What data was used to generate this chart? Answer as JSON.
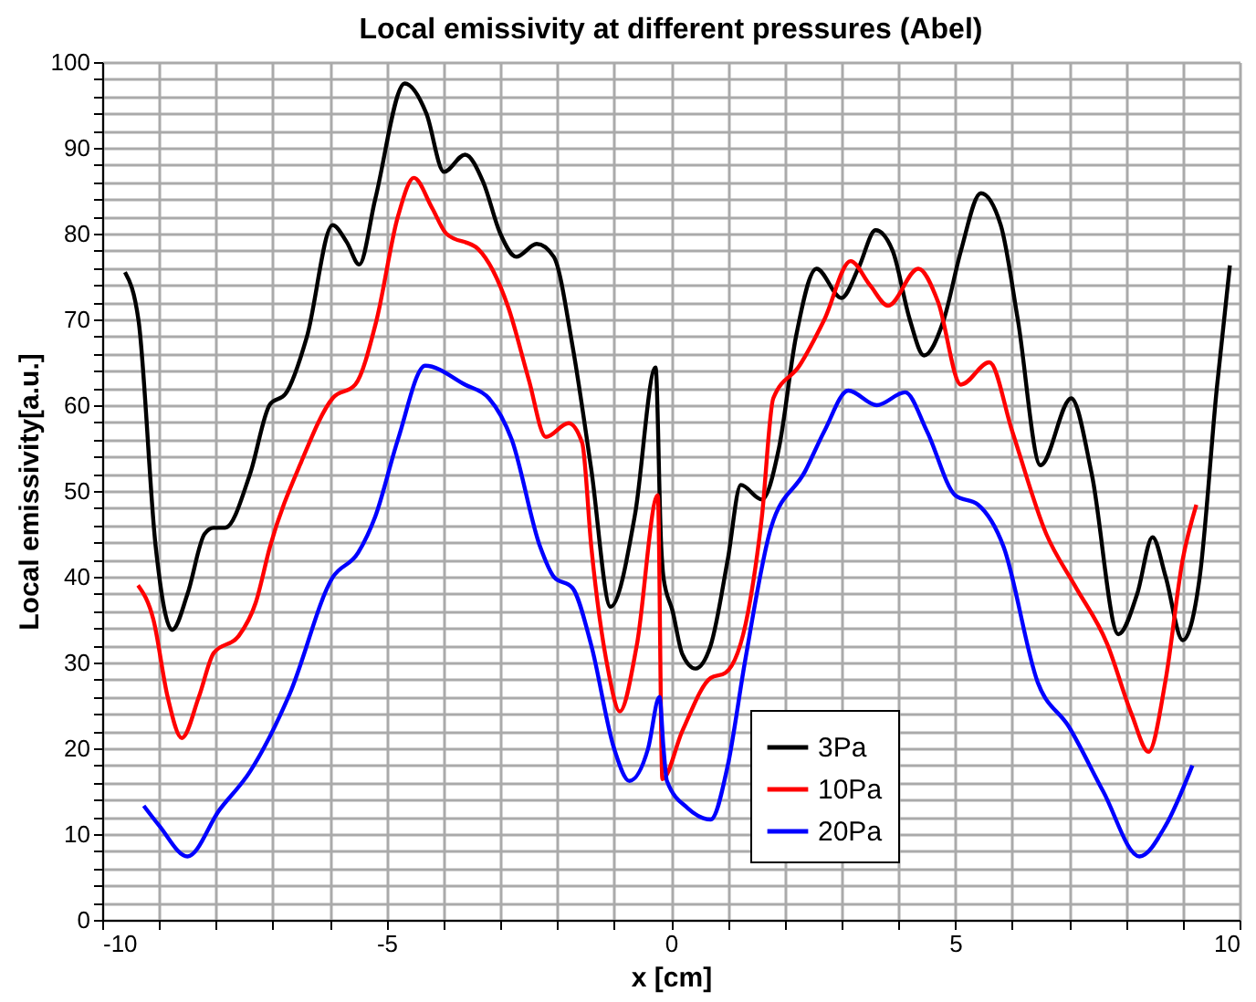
{
  "chart_data": {
    "type": "line",
    "title": "Local emissivity at different pressures (Abel)",
    "xlabel": "x [cm]",
    "ylabel": "Local emissivity[a.u.]",
    "xlim": [
      -10,
      10
    ],
    "ylim": [
      0,
      100
    ],
    "xticks": [
      -10,
      {
        "value": -9,
        "label": null
      },
      {
        "value": -8,
        "label": null
      },
      {
        "value": -7,
        "label": null
      },
      {
        "value": -6,
        "label": null
      },
      -5,
      {
        "value": -4,
        "label": null
      },
      {
        "value": -3,
        "label": null
      },
      {
        "value": -2,
        "label": null
      },
      {
        "value": -1,
        "label": null
      },
      0,
      {
        "value": 1,
        "label": null
      },
      {
        "value": 2,
        "label": null
      },
      {
        "value": 3,
        "label": null
      },
      {
        "value": 4,
        "label": null
      },
      5,
      {
        "value": 6,
        "label": null
      },
      {
        "value": 7,
        "label": null
      },
      {
        "value": 8,
        "label": null
      },
      {
        "value": 9,
        "label": null
      },
      10
    ],
    "yticks": [
      0,
      {
        "value": 2,
        "label": null
      },
      {
        "value": 4,
        "label": null
      },
      {
        "value": 6,
        "label": null
      },
      {
        "value": 8,
        "label": null
      },
      10,
      {
        "value": 12,
        "label": null
      },
      {
        "value": 14,
        "label": null
      },
      {
        "value": 16,
        "label": null
      },
      {
        "value": 18,
        "label": null
      },
      20,
      {
        "value": 22,
        "label": null
      },
      {
        "value": 24,
        "label": null
      },
      {
        "value": 26,
        "label": null
      },
      {
        "value": 28,
        "label": null
      },
      30,
      {
        "value": 32,
        "label": null
      },
      {
        "value": 34,
        "label": null
      },
      {
        "value": 36,
        "label": null
      },
      {
        "value": 38,
        "label": null
      },
      40,
      {
        "value": 42,
        "label": null
      },
      {
        "value": 44,
        "label": null
      },
      {
        "value": 46,
        "label": null
      },
      {
        "value": 48,
        "label": null
      },
      50,
      {
        "value": 52,
        "label": null
      },
      {
        "value": 54,
        "label": null
      },
      {
        "value": 56,
        "label": null
      },
      {
        "value": 58,
        "label": null
      },
      60,
      {
        "value": 62,
        "label": null
      },
      {
        "value": 64,
        "label": null
      },
      {
        "value": 66,
        "label": null
      },
      {
        "value": 68,
        "label": null
      },
      70,
      {
        "value": 72,
        "label": null
      },
      {
        "value": 74,
        "label": null
      },
      {
        "value": 76,
        "label": null
      },
      {
        "value": 78,
        "label": null
      },
      80,
      {
        "value": 82,
        "label": null
      },
      {
        "value": 84,
        "label": null
      },
      {
        "value": 86,
        "label": null
      },
      {
        "value": 88,
        "label": null
      },
      90,
      {
        "value": 92,
        "label": null
      },
      {
        "value": 94,
        "label": null
      },
      {
        "value": 96,
        "label": null
      },
      {
        "value": 98,
        "label": null
      },
      100
    ],
    "grid": true,
    "legend": "bottom right",
    "marker": "none",
    "line_style": "solid",
    "series": [
      {
        "name": "3Pa",
        "color": "#000000",
        "x": [
          -9.6,
          -9.36,
          -9.06,
          -8.77,
          -8.5,
          -8.2,
          -8.04,
          -7.84,
          -7.4,
          -7.05,
          -6.78,
          -6.4,
          -5.95,
          -5.7,
          -5.48,
          -5.2,
          -4.68,
          -4.3,
          -3.99,
          -3.62,
          -3.3,
          -3.0,
          -2.72,
          -2.36,
          -2.06,
          -1.73,
          -1.4,
          -1.06,
          -0.63,
          -0.27,
          -0.17,
          -0.13,
          0.03,
          0.2,
          0.43,
          0.7,
          1.0,
          1.23,
          1.6,
          1.9,
          2.2,
          2.56,
          3.0,
          3.3,
          3.6,
          3.9,
          4.2,
          4.45,
          4.8,
          5.1,
          5.45,
          5.8,
          6.1,
          6.5,
          7.04,
          7.4,
          7.87,
          8.2,
          8.47,
          8.7,
          9.0,
          9.3,
          9.6,
          9.83
        ],
        "values": [
          75.5,
          69.8,
          43.5,
          33.8,
          38,
          45,
          45.7,
          45.7,
          52,
          60.1,
          61.3,
          68,
          81,
          79,
          76.4,
          84,
          97.5,
          94,
          87.2,
          89.2,
          86,
          80,
          77.3,
          78.8,
          77.3,
          66.9,
          52.5,
          36.5,
          47.3,
          64.4,
          43.5,
          39.9,
          36,
          31,
          29.3,
          32,
          42,
          50.7,
          49,
          55,
          68,
          75.9,
          72.5,
          76,
          80.4,
          78,
          70,
          65.8,
          70,
          78,
          84.7,
          81,
          70,
          53,
          60.8,
          52,
          33.3,
          38,
          44.6,
          40,
          32.6,
          40,
          62,
          76.3
        ]
      },
      {
        "name": "10Pa",
        "color": "#ff0000",
        "x": [
          -9.37,
          -9.1,
          -8.85,
          -8.6,
          -8.3,
          -8.04,
          -7.6,
          -7.3,
          -7.05,
          -6.5,
          -5.95,
          -5.55,
          -5.18,
          -4.8,
          -4.52,
          -4.2,
          -3.95,
          -3.39,
          -2.86,
          -2.5,
          -2.2,
          -1.8,
          -1.56,
          -1.4,
          -1.1,
          -0.9,
          -0.6,
          -0.23,
          -0.15,
          0.2,
          0.7,
          0.96,
          1.36,
          1.6,
          1.8,
          2.26,
          2.7,
          3.16,
          3.5,
          3.82,
          4.35,
          4.7,
          5.1,
          5.6,
          6.0,
          6.6,
          7.1,
          7.67,
          8.1,
          8.4,
          8.7,
          9.0,
          9.24
        ],
        "values": [
          39,
          35,
          26,
          21.2,
          26,
          31.1,
          33.1,
          37,
          43.5,
          53.4,
          60.8,
          62.4,
          69.8,
          82,
          86.5,
          83,
          80,
          78.2,
          71.4,
          63,
          56.3,
          57.9,
          55.6,
          43.5,
          29,
          24.3,
          32,
          49.5,
          16.4,
          22,
          28.2,
          28.8,
          36,
          47,
          60.8,
          64.6,
          70,
          76.8,
          74,
          71.6,
          75.9,
          72,
          62.4,
          65,
          57,
          45,
          39,
          32.2,
          24,
          19.6,
          28,
          42,
          48.4
        ]
      },
      {
        "name": "20Pa",
        "color": "#0000ff",
        "x": [
          -9.27,
          -9.0,
          -8.5,
          -7.94,
          -7.4,
          -6.7,
          -5.95,
          -5.5,
          -5.2,
          -4.8,
          -4.32,
          -3.62,
          -3.2,
          -2.8,
          -2.3,
          -2.06,
          -1.73,
          -1.4,
          -1.0,
          -0.73,
          -0.4,
          -0.2,
          -0.13,
          -0.07,
          0.3,
          0.7,
          1.0,
          1.3,
          1.76,
          2.36,
          2.7,
          3.12,
          3.62,
          4.12,
          4.5,
          5.0,
          5.4,
          5.85,
          6.45,
          7.0,
          7.6,
          8.24,
          8.7,
          9.17
        ],
        "values": [
          13.3,
          11,
          7.4,
          12.8,
          17.3,
          26.4,
          39.9,
          42.8,
          47,
          56,
          64.6,
          62.4,
          60.8,
          56,
          43.5,
          40,
          38.7,
          32,
          20,
          16.2,
          20,
          26,
          20,
          16.2,
          13,
          11.7,
          18,
          30,
          45.7,
          52.3,
          57,
          61.7,
          60,
          61.5,
          57,
          49.5,
          48.4,
          43.5,
          27.7,
          22.5,
          15,
          7.4,
          11,
          18
        ]
      }
    ]
  }
}
